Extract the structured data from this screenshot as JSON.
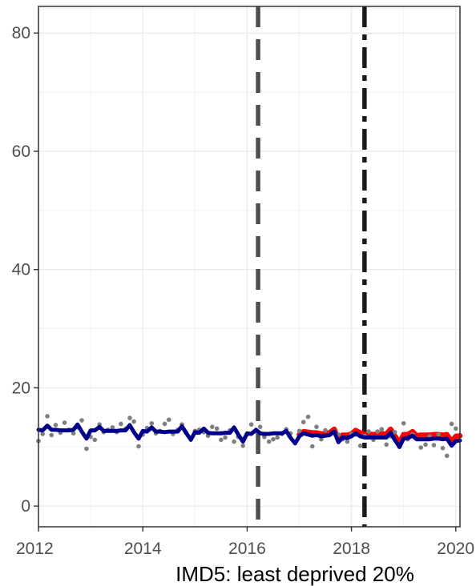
{
  "chart_data": {
    "type": "line",
    "xlabel": "IMD5: least deprived 20%",
    "ylabel": "",
    "xlim": [
      2012.0,
      2020.08
    ],
    "ylim": [
      -3.5,
      84.5
    ],
    "x_ticks": [
      2012,
      2014,
      2016,
      2018,
      2020
    ],
    "x_tick_labels": [
      "2012",
      "2014",
      "2016",
      "2018",
      "2020"
    ],
    "y_ticks": [
      0,
      20,
      40,
      60,
      80
    ],
    "y_tick_labels": [
      "0",
      "20",
      "40",
      "60",
      "80"
    ],
    "grid": true,
    "vlines": [
      {
        "x": 2016.21,
        "style": "dashed",
        "color": "#4d4d4d"
      },
      {
        "x": 2018.25,
        "style": "dashdot",
        "color": "#1a1a1a"
      }
    ],
    "points": {
      "name": "observed",
      "color": "#7f7f7f",
      "x": [
        2012.0,
        2012.08,
        2012.17,
        2012.25,
        2012.33,
        2012.42,
        2012.5,
        2012.58,
        2012.67,
        2012.75,
        2012.83,
        2012.92,
        2013.0,
        2013.08,
        2013.17,
        2013.25,
        2013.33,
        2013.42,
        2013.5,
        2013.58,
        2013.67,
        2013.75,
        2013.83,
        2013.92,
        2014.0,
        2014.08,
        2014.17,
        2014.25,
        2014.33,
        2014.42,
        2014.5,
        2014.58,
        2014.67,
        2014.75,
        2014.83,
        2014.92,
        2015.0,
        2015.08,
        2015.17,
        2015.25,
        2015.33,
        2015.42,
        2015.5,
        2015.58,
        2015.67,
        2015.75,
        2015.83,
        2015.92,
        2016.0,
        2016.08,
        2016.17,
        2016.25,
        2016.33,
        2016.42,
        2016.5,
        2016.58,
        2016.67,
        2016.75,
        2016.83,
        2016.92,
        2017.0,
        2017.08,
        2017.17,
        2017.25,
        2017.33,
        2017.42,
        2017.5,
        2017.58,
        2017.67,
        2017.75,
        2017.83,
        2017.92,
        2018.0,
        2018.08,
        2018.17,
        2018.25,
        2018.33,
        2018.42,
        2018.5,
        2018.58,
        2018.67,
        2018.75,
        2018.83,
        2018.92,
        2019.0,
        2019.08,
        2019.17,
        2019.25,
        2019.33,
        2019.42,
        2019.5,
        2019.58,
        2019.67,
        2019.75,
        2019.83,
        2019.92,
        2020.0
      ],
      "y": [
        11.0,
        12.2,
        15.2,
        12.0,
        13.7,
        12.4,
        14.1,
        12.9,
        12.3,
        13.3,
        14.5,
        9.7,
        11.7,
        11.2,
        13.8,
        12.5,
        12.9,
        13.3,
        12.5,
        13.9,
        13.1,
        14.9,
        14.3,
        10.1,
        12.1,
        13.2,
        14.0,
        12.3,
        12.7,
        13.9,
        14.6,
        12.2,
        12.9,
        13.8,
        12.4,
        11.4,
        12.7,
        12.9,
        12.5,
        11.9,
        13.4,
        13.1,
        11.2,
        11.6,
        12.8,
        10.9,
        11.7,
        10.2,
        12.1,
        13.8,
        12.6,
        13.4,
        11.7,
        10.9,
        11.3,
        11.6,
        12.2,
        13.0,
        12.3,
        10.7,
        12.7,
        14.2,
        15.1,
        10.1,
        13.4,
        11.3,
        12.8,
        12.1,
        12.6,
        12.1,
        11.3,
        10.9,
        12.2,
        12.1,
        10.2,
        11.9,
        12.6,
        11.2,
        12.6,
        13.0,
        10.4,
        11.8,
        12.5,
        10.0,
        14.0,
        11.3,
        12.1,
        11.4,
        9.9,
        10.4,
        11.8,
        10.3,
        12.1,
        9.8,
        8.5,
        13.9,
        13.1
      ]
    },
    "series": [
      {
        "name": "counterfactual",
        "color": "#ff0000",
        "x": [
          2017.0,
          2017.08,
          2017.17,
          2017.25,
          2017.33,
          2017.42,
          2017.5,
          2017.58,
          2017.67,
          2017.75,
          2017.83,
          2017.92,
          2018.0,
          2018.08,
          2018.17,
          2018.25,
          2018.33,
          2018.42,
          2018.5,
          2018.58,
          2018.67,
          2018.75,
          2018.83,
          2018.92,
          2019.0,
          2019.08,
          2019.17,
          2019.25,
          2019.33,
          2019.42,
          2019.5,
          2019.58,
          2019.67,
          2019.75,
          2019.83,
          2019.92,
          2020.0,
          2020.08
        ],
        "y": [
          12.1,
          12.6,
          12.5,
          12.4,
          12.4,
          12.2,
          12.3,
          12.4,
          13.0,
          11.2,
          12.0,
          12.0,
          12.2,
          12.8,
          12.4,
          12.1,
          12.2,
          12.1,
          12.2,
          12.2,
          12.2,
          13.0,
          11.9,
          10.7,
          12.1,
          12.1,
          12.6,
          11.9,
          12.0,
          12.0,
          12.0,
          12.1,
          12.1,
          12.0,
          12.1,
          10.9,
          11.8,
          11.9
        ]
      },
      {
        "name": "fitted",
        "color": "#00008b",
        "x": [
          2012.0,
          2012.08,
          2012.17,
          2012.25,
          2012.33,
          2012.42,
          2012.5,
          2012.58,
          2012.67,
          2012.75,
          2012.83,
          2012.92,
          2013.0,
          2013.08,
          2013.17,
          2013.25,
          2013.33,
          2013.42,
          2013.5,
          2013.58,
          2013.67,
          2013.75,
          2013.83,
          2013.92,
          2014.0,
          2014.08,
          2014.17,
          2014.25,
          2014.33,
          2014.42,
          2014.5,
          2014.58,
          2014.67,
          2014.75,
          2014.83,
          2014.92,
          2015.0,
          2015.08,
          2015.17,
          2015.25,
          2015.33,
          2015.42,
          2015.5,
          2015.58,
          2015.67,
          2015.75,
          2015.83,
          2015.92,
          2016.0,
          2016.08,
          2016.17,
          2016.25,
          2016.33,
          2016.42,
          2016.5,
          2016.58,
          2016.67,
          2016.75,
          2016.83,
          2016.92,
          2017.0,
          2017.08,
          2017.17,
          2017.25,
          2017.33,
          2017.42,
          2017.5,
          2017.58,
          2017.67,
          2017.75,
          2017.83,
          2017.92,
          2018.0,
          2018.08,
          2018.17,
          2018.25,
          2018.33,
          2018.42,
          2018.5,
          2018.58,
          2018.67,
          2018.75,
          2018.83,
          2018.92,
          2019.0,
          2019.08,
          2019.17,
          2019.25,
          2019.33,
          2019.42,
          2019.5,
          2019.58,
          2019.67,
          2019.75,
          2019.83,
          2019.92,
          2020.0,
          2020.08
        ],
        "y": [
          12.9,
          12.8,
          13.6,
          12.9,
          12.9,
          12.8,
          12.8,
          12.8,
          12.9,
          13.8,
          12.6,
          11.4,
          12.8,
          12.8,
          13.4,
          12.7,
          12.7,
          12.7,
          12.7,
          12.8,
          12.8,
          13.7,
          12.5,
          11.4,
          12.7,
          12.6,
          13.3,
          12.6,
          12.6,
          12.5,
          12.6,
          12.6,
          12.6,
          13.5,
          12.4,
          11.2,
          12.5,
          12.4,
          13.1,
          12.4,
          12.3,
          12.3,
          12.3,
          12.4,
          12.4,
          13.3,
          12.1,
          10.9,
          12.3,
          12.2,
          12.9,
          12.3,
          12.2,
          12.2,
          12.3,
          12.3,
          12.3,
          12.7,
          11.6,
          10.6,
          11.8,
          12.3,
          12.1,
          11.9,
          12.0,
          11.8,
          11.9,
          12.0,
          12.6,
          10.8,
          11.6,
          11.5,
          11.8,
          12.3,
          11.8,
          11.6,
          11.6,
          11.6,
          11.6,
          11.6,
          11.6,
          12.4,
          11.2,
          10.0,
          11.4,
          11.5,
          11.9,
          11.3,
          11.3,
          11.3,
          11.3,
          11.4,
          11.4,
          11.3,
          11.4,
          10.2,
          11.0,
          11.1
        ]
      }
    ]
  }
}
